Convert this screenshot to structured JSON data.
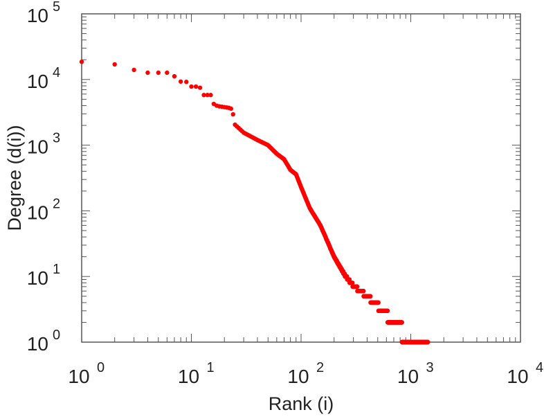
{
  "chart_data": {
    "type": "scatter",
    "title": "",
    "xlabel": "Rank (i)",
    "ylabel": "Degree (d(i))",
    "xscale": "log",
    "yscale": "log",
    "xlim": [
      1,
      10000
    ],
    "ylim": [
      1,
      100000
    ],
    "x_ticks": [
      {
        "base": "10",
        "exp": "0"
      },
      {
        "base": "10",
        "exp": "1"
      },
      {
        "base": "10",
        "exp": "2"
      },
      {
        "base": "10",
        "exp": "3"
      },
      {
        "base": "10",
        "exp": "4"
      }
    ],
    "y_ticks": [
      {
        "base": "10",
        "exp": "0"
      },
      {
        "base": "10",
        "exp": "1"
      },
      {
        "base": "10",
        "exp": "2"
      },
      {
        "base": "10",
        "exp": "3"
      },
      {
        "base": "10",
        "exp": "4"
      },
      {
        "base": "10",
        "exp": "5"
      }
    ],
    "grid": false,
    "marker_color": "#ff0000",
    "max_rank": 1430,
    "series_anchor_points": [
      [
        1,
        18600
      ],
      [
        2,
        17000
      ],
      [
        3,
        14000
      ],
      [
        4,
        12700
      ],
      [
        5,
        12700
      ],
      [
        6,
        12700
      ],
      [
        7,
        11200
      ],
      [
        8,
        9300
      ],
      [
        9,
        9200
      ],
      [
        10,
        7800
      ],
      [
        11,
        7800
      ],
      [
        12,
        7500
      ],
      [
        13,
        5800
      ],
      [
        14,
        5800
      ],
      [
        15,
        5800
      ],
      [
        16,
        4250
      ],
      [
        17,
        4000
      ],
      [
        18,
        3900
      ],
      [
        20,
        3800
      ],
      [
        22,
        3700
      ],
      [
        23,
        3600
      ],
      [
        24,
        2950
      ],
      [
        25,
        2050
      ],
      [
        30,
        1550
      ],
      [
        40,
        1200
      ],
      [
        50,
        1000
      ],
      [
        60,
        740
      ],
      [
        70,
        610
      ],
      [
        80,
        420
      ],
      [
        90,
        360
      ],
      [
        100,
        230
      ],
      [
        120,
        110
      ],
      [
        150,
        60
      ],
      [
        200,
        20
      ],
      [
        250,
        10.5
      ],
      [
        300,
        7.2
      ],
      [
        400,
        5
      ],
      [
        500,
        3.6
      ],
      [
        600,
        2.6
      ],
      [
        830,
        1.55
      ],
      [
        840,
        1.0
      ],
      [
        1430,
        1.0
      ]
    ]
  }
}
